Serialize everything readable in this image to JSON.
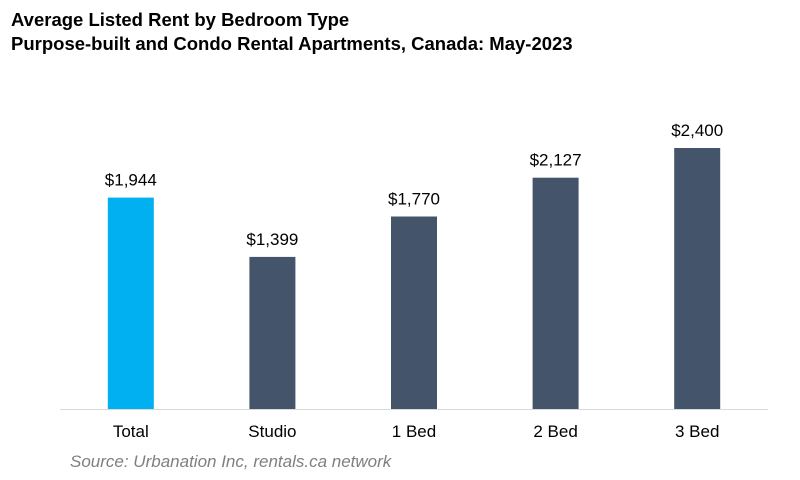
{
  "title": "Average Listed Rent by Bedroom Type",
  "subtitle": "Purpose-built and Condo Rental Apartments, Canada: May-2023",
  "source": "Source: Urbanation Inc, rentals.ca network",
  "colors": {
    "highlight": "#00b0f0",
    "bar": "#44546a",
    "axis": "#d9d9d9"
  },
  "chart_data": {
    "type": "bar",
    "title": "Average Listed Rent by Bedroom Type",
    "subtitle": "Purpose-built and Condo Rental Apartments, Canada: May-2023",
    "categories": [
      "Total",
      "Studio",
      "1 Bed",
      "2 Bed",
      "3 Bed"
    ],
    "values": [
      1944,
      1399,
      1770,
      2127,
      2400
    ],
    "data_labels": [
      "$1,944",
      "$1,399",
      "$1,770",
      "$2,127",
      "$2,400"
    ],
    "highlighted_category": "Total",
    "ylim": [
      0,
      2400
    ],
    "xlabel": "",
    "ylabel": "",
    "grid": false,
    "legend": "none"
  }
}
